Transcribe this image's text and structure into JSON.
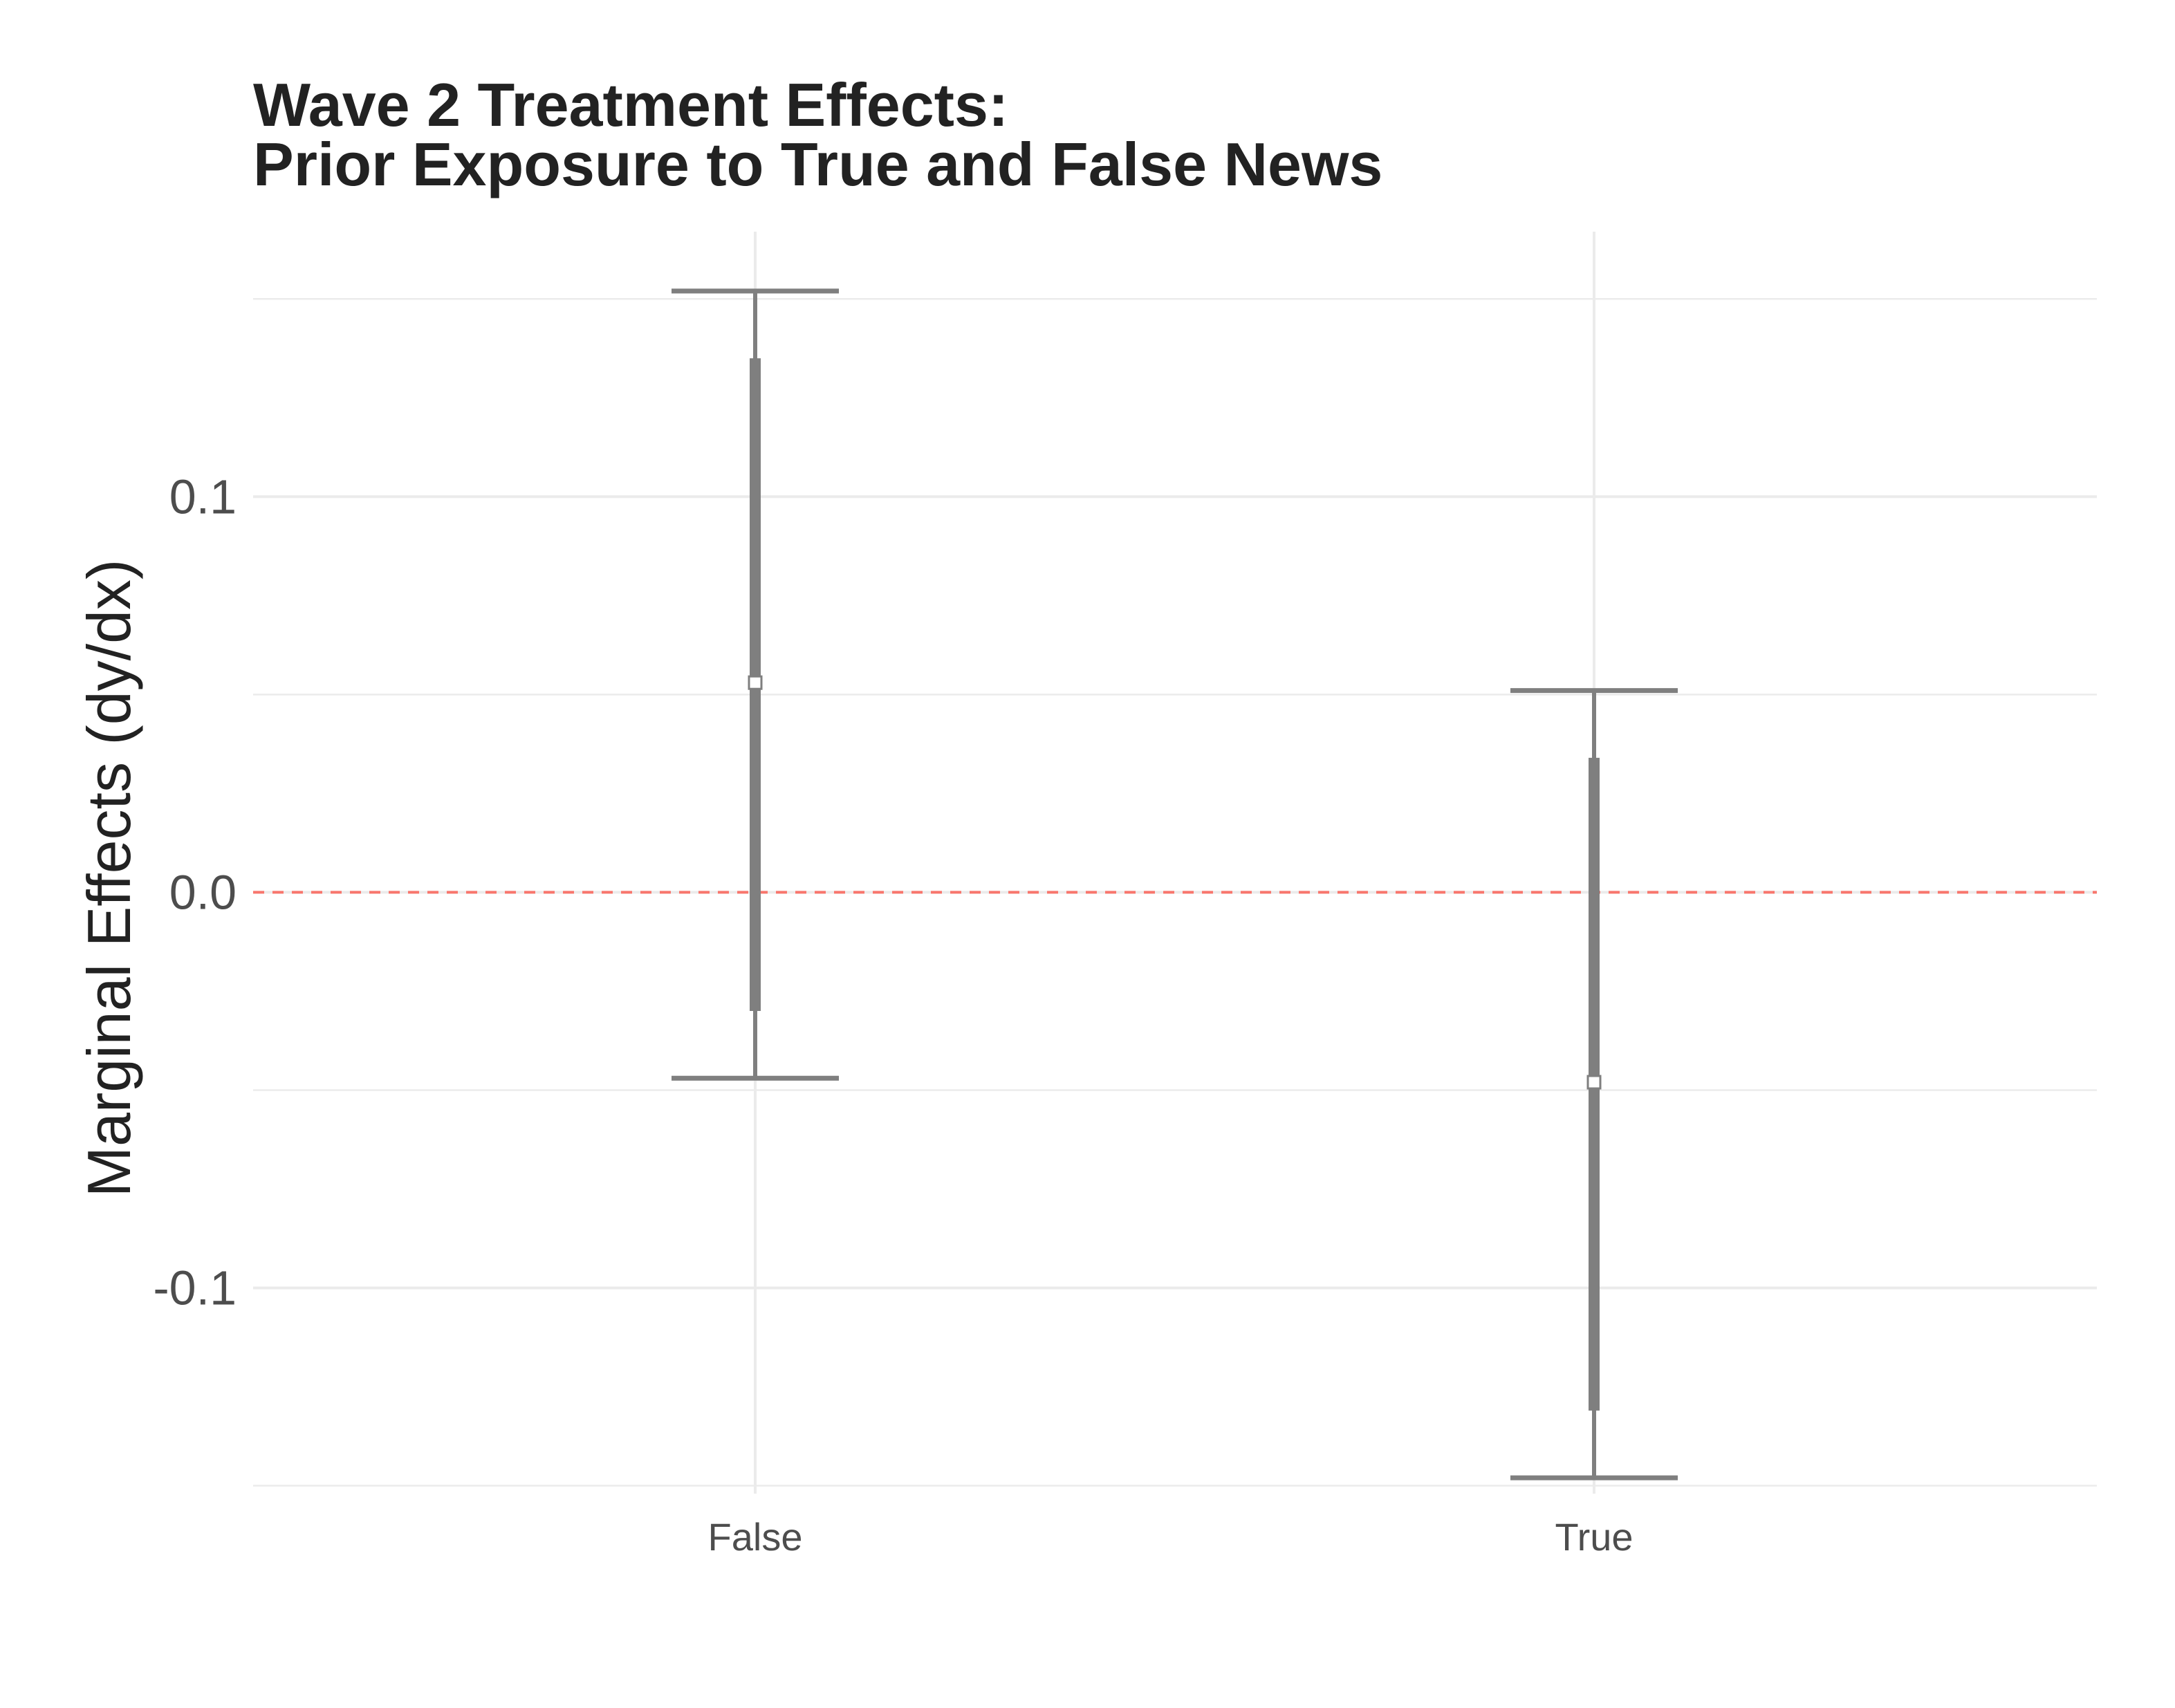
{
  "chart_data": {
    "type": "errorbar",
    "title": [
      "Wave 2 Treatment Effects:",
      "Prior Exposure to True and False News"
    ],
    "xlabel": "",
    "ylabel": "Marginal Effects (dy/dx)",
    "categories": [
      "False",
      "True"
    ],
    "estimates": [
      0.053,
      -0.048
    ],
    "ci_inner": [
      [
        -0.03,
        0.135
      ],
      [
        -0.131,
        0.034
      ]
    ],
    "ci_outer": [
      [
        -0.047,
        0.152
      ],
      [
        -0.148,
        0.051
      ]
    ],
    "ylim": [
      -0.152,
      0.167
    ],
    "yticks": [
      -0.1,
      0.0,
      0.1
    ],
    "ytick_labels": [
      "-0.1",
      "0.0",
      "0.1"
    ],
    "reference_line": 0,
    "grid": true,
    "colors": {
      "bar": "#7f7f7f",
      "reference_line": "#f8766d",
      "grid": "#ebebeb",
      "point_fill": "#ffffff"
    }
  }
}
